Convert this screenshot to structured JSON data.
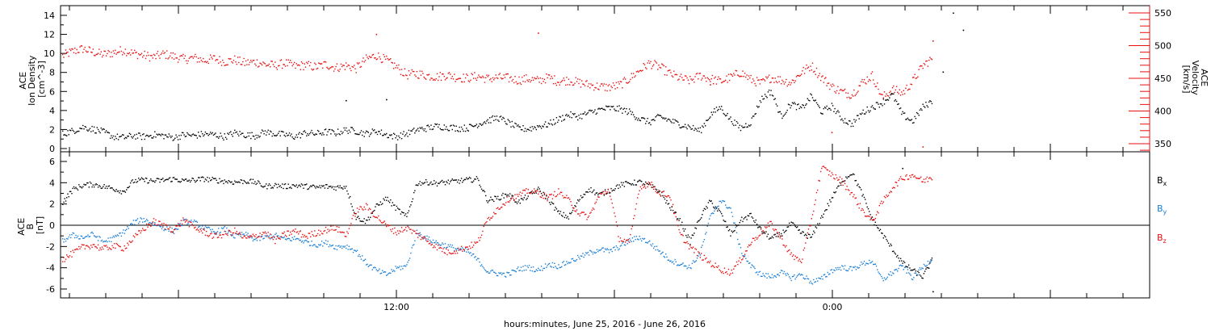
{
  "colors": {
    "black": "#000000",
    "red": "#e81010",
    "blue": "#1a7fd6"
  },
  "chart_data": [
    {
      "type": "scatter",
      "panel": "top",
      "left_axis": {
        "label_lines": [
          "ACE",
          "Ion Density",
          "[cm^-3]"
        ],
        "ylim": [
          0,
          15
        ],
        "ticks": [
          "0",
          "2",
          "4",
          "6",
          "8",
          "10",
          "12",
          "14"
        ]
      },
      "right_axis": {
        "label_lines": [
          "ACE",
          "Velocity",
          "[km/s]"
        ],
        "ylim": [
          330,
          560
        ],
        "ticks": [
          "350",
          "400",
          "450",
          "500",
          "550"
        ]
      },
      "series": [
        {
          "axis": "left",
          "color": "black",
          "x": [
            0,
            1,
            2,
            3,
            4,
            5,
            6,
            7,
            8,
            9,
            10,
            11,
            12,
            13,
            14,
            15,
            16,
            17,
            18,
            19,
            20,
            21,
            22,
            23,
            24,
            25,
            26,
            27,
            28,
            29,
            30,
            31,
            32,
            33,
            34,
            35,
            36,
            37,
            38,
            39,
            40,
            41,
            42,
            43,
            44,
            45,
            46,
            47,
            48,
            49,
            50,
            51,
            52,
            53,
            54,
            55,
            56,
            57,
            58,
            59,
            60,
            61,
            62,
            63,
            64,
            65,
            66,
            67,
            68,
            69,
            70,
            71,
            72,
            73,
            74,
            75,
            76,
            77,
            78,
            79,
            80,
            81,
            82,
            83,
            84,
            85,
            86
          ],
          "values": [
            1.6,
            1.9,
            2.3,
            2.1,
            1.8,
            1.3,
            1.2,
            1.4,
            1.3,
            1.5,
            1.4,
            1.2,
            1.5,
            1.4,
            1.6,
            1.5,
            1.3,
            1.7,
            1.5,
            1.4,
            1.8,
            1.6,
            1.5,
            1.3,
            1.7,
            1.6,
            1.8,
            1.7,
            2.0,
            1.9,
            1.6,
            1.9,
            1.5,
            1.3,
            1.6,
            2.0,
            2.2,
            2.4,
            2.3,
            2.2,
            2.2,
            2.6,
            3.0,
            3.3,
            2.8,
            2.2,
            2.1,
            2.4,
            2.6,
            3.1,
            3.6,
            3.4,
            3.8,
            4.1,
            4.3,
            4.2,
            3.9,
            3.2,
            2.8,
            3.4,
            3.0,
            2.6,
            2.3,
            1.9,
            3.6,
            4.4,
            3.1,
            2.2,
            2.8,
            5.2,
            6.1,
            3.4,
            4.8,
            4.2,
            5.6,
            3.9,
            4.5,
            3.2,
            2.6,
            3.8,
            4.4,
            4.9,
            5.7,
            3.6,
            2.9,
            4.4,
            5.1
          ],
          "outliers": [
            [
              28,
              5.1
            ],
            [
              32,
              5.2
            ],
            [
              88,
              14.3
            ],
            [
              89,
              12.5
            ],
            [
              87,
              8.1
            ]
          ]
        },
        {
          "axis": "right",
          "color": "red",
          "x": [
            0,
            1,
            2,
            3,
            4,
            5,
            6,
            7,
            8,
            9,
            10,
            11,
            12,
            13,
            14,
            15,
            16,
            17,
            18,
            19,
            20,
            21,
            22,
            23,
            24,
            25,
            26,
            27,
            28,
            29,
            30,
            31,
            32,
            33,
            34,
            35,
            36,
            37,
            38,
            39,
            40,
            41,
            42,
            43,
            44,
            45,
            46,
            47,
            48,
            49,
            50,
            51,
            52,
            53,
            54,
            55,
            56,
            57,
            58,
            59,
            60,
            61,
            62,
            63,
            64,
            65,
            66,
            67,
            68,
            69,
            70,
            71,
            72,
            73,
            74,
            75,
            76,
            77,
            78,
            79,
            80,
            81,
            82,
            83,
            84,
            85,
            86
          ],
          "values": [
            485,
            492,
            496,
            491,
            487,
            490,
            494,
            489,
            486,
            483,
            488,
            484,
            480,
            482,
            478,
            481,
            476,
            479,
            474,
            476,
            472,
            470,
            474,
            469,
            471,
            468,
            472,
            467,
            470,
            466,
            480,
            486,
            478,
            468,
            456,
            458,
            455,
            453,
            456,
            452,
            451,
            454,
            450,
            452,
            451,
            448,
            450,
            447,
            452,
            446,
            448,
            444,
            441,
            438,
            437,
            440,
            450,
            463,
            474,
            468,
            458,
            451,
            447,
            455,
            450,
            446,
            452,
            460,
            449,
            443,
            452,
            448,
            444,
            460,
            470,
            452,
            438,
            430,
            426,
            444,
            455,
            421,
            434,
            428,
            446,
            470,
            482
          ],
          "outliers": [
            [
              31,
              518
            ],
            [
              47,
              520
            ],
            [
              64,
              441
            ],
            [
              86,
              508
            ],
            [
              85,
              346
            ],
            [
              76,
              368
            ]
          ]
        }
      ]
    },
    {
      "type": "scatter",
      "panel": "bottom",
      "left_axis": {
        "label_lines": [
          "ACE",
          "B",
          "[nT]"
        ],
        "ylim": [
          -7,
          7
        ],
        "ticks": [
          "-6",
          "-4",
          "-2",
          "0",
          "2",
          "4",
          "6"
        ]
      },
      "x_axis": {
        "label": "hours:minutes, June 25, 2016 - June 26, 2016",
        "tick_labels": [
          "12:00",
          "0:00"
        ]
      },
      "legend": [
        "Bx",
        "By",
        "Bz"
      ],
      "series": [
        {
          "name": "Bx",
          "color": "black",
          "x": [
            0,
            1,
            2,
            3,
            4,
            5,
            6,
            7,
            8,
            9,
            10,
            11,
            12,
            13,
            14,
            15,
            16,
            17,
            18,
            19,
            20,
            21,
            22,
            23,
            24,
            25,
            26,
            27,
            28,
            29,
            30,
            31,
            32,
            33,
            34,
            35,
            36,
            37,
            38,
            39,
            40,
            41,
            42,
            43,
            44,
            45,
            46,
            47,
            48,
            49,
            50,
            51,
            52,
            53,
            54,
            55,
            56,
            57,
            58,
            59,
            60,
            61,
            62,
            63,
            64,
            65,
            66,
            67,
            68,
            69,
            70,
            71,
            72,
            73,
            74,
            75,
            76,
            77,
            78,
            79,
            80,
            81,
            82,
            83,
            84,
            85,
            86
          ],
          "values": [
            2.2,
            3.4,
            3.8,
            3.9,
            3.7,
            3.5,
            3.2,
            4.2,
            4.3,
            4.2,
            4.3,
            4.4,
            4.2,
            4.3,
            4.4,
            4.3,
            4.2,
            4.1,
            4.2,
            4.1,
            3.7,
            3.8,
            3.7,
            3.8,
            3.7,
            3.6,
            3.7,
            3.6,
            3.7,
            0.8,
            0.4,
            1.8,
            2.6,
            1.6,
            0.8,
            4.0,
            4.1,
            4.0,
            4.1,
            4.2,
            4.3,
            4.4,
            2.4,
            2.6,
            3.0,
            2.2,
            2.8,
            3.4,
            2.5,
            1.2,
            0.8,
            2.4,
            3.5,
            2.9,
            3.3,
            3.8,
            4.0,
            4.1,
            3.8,
            3.2,
            1.8,
            0.5,
            -1.5,
            0.8,
            2.3,
            1.2,
            -0.8,
            0.5,
            1.0,
            -0.4,
            -1.2,
            -0.8,
            0.2,
            -0.7,
            -1.1,
            0.8,
            2.6,
            4.2,
            5.0,
            3.0,
            0.6,
            -0.8,
            -2.2,
            -3.5,
            -4.2,
            -4.8,
            -3.1
          ],
          "outliers": [
            [
              83,
              5.4
            ],
            [
              86,
              -6.2
            ]
          ]
        },
        {
          "name": "By",
          "color": "blue",
          "x": [
            0,
            1,
            2,
            3,
            4,
            5,
            6,
            7,
            8,
            9,
            10,
            11,
            12,
            13,
            14,
            15,
            16,
            17,
            18,
            19,
            20,
            21,
            22,
            23,
            24,
            25,
            26,
            27,
            28,
            29,
            30,
            31,
            32,
            33,
            34,
            35,
            36,
            37,
            38,
            39,
            40,
            41,
            42,
            43,
            44,
            45,
            46,
            47,
            48,
            49,
            50,
            51,
            52,
            53,
            54,
            55,
            56,
            57,
            58,
            59,
            60,
            61,
            62,
            63,
            64,
            65,
            66,
            67,
            68,
            69,
            70,
            71,
            72,
            73,
            74,
            75,
            76,
            77,
            78,
            79,
            80,
            81,
            82,
            83,
            84,
            85,
            86
          ],
          "values": [
            -1.4,
            -0.9,
            -1.1,
            -0.8,
            -1.5,
            -1.2,
            -0.6,
            0.3,
            0.6,
            0.2,
            -0.2,
            -0.5,
            0.4,
            0.3,
            -0.2,
            -0.6,
            -0.3,
            -1.0,
            -0.8,
            -1.3,
            -1.1,
            -0.9,
            -1.3,
            -1.2,
            -1.5,
            -1.8,
            -1.6,
            -2.0,
            -1.9,
            -2.4,
            -3.5,
            -4.2,
            -4.6,
            -4.0,
            -3.8,
            -0.6,
            -1.2,
            -1.6,
            -1.9,
            -2.2,
            -2.4,
            -3.2,
            -4.3,
            -4.5,
            -4.6,
            -4.1,
            -3.9,
            -4.2,
            -3.6,
            -3.8,
            -3.4,
            -3.0,
            -2.6,
            -2.2,
            -2.4,
            -2.0,
            -1.4,
            -1.1,
            -1.6,
            -2.4,
            -3.2,
            -3.6,
            -3.9,
            -2.6,
            0.8,
            2.4,
            1.6,
            -2.3,
            -3.8,
            -4.6,
            -4.8,
            -4.4,
            -4.9,
            -4.6,
            -5.3,
            -5.0,
            -4.2,
            -3.9,
            -4.1,
            -3.6,
            -3.3,
            -5.1,
            -4.4,
            -3.8,
            -4.9,
            -3.9,
            -3.0
          ]
        },
        {
          "name": "Bz",
          "color": "red",
          "x": [
            0,
            1,
            2,
            3,
            4,
            5,
            6,
            7,
            8,
            9,
            10,
            11,
            12,
            13,
            14,
            15,
            16,
            17,
            18,
            19,
            20,
            21,
            22,
            23,
            24,
            25,
            26,
            27,
            28,
            29,
            30,
            31,
            32,
            33,
            34,
            35,
            36,
            37,
            38,
            39,
            40,
            41,
            42,
            43,
            44,
            45,
            46,
            47,
            48,
            49,
            50,
            51,
            52,
            53,
            54,
            55,
            56,
            57,
            58,
            59,
            60,
            61,
            62,
            63,
            64,
            65,
            66,
            67,
            68,
            69,
            70,
            71,
            72,
            73,
            74,
            75,
            76,
            77,
            78,
            79,
            80,
            81,
            82,
            83,
            84,
            85,
            86
          ],
          "values": [
            -3.2,
            -2.6,
            -2.0,
            -1.8,
            -2.2,
            -1.9,
            -2.1,
            -1.2,
            -0.3,
            0.4,
            0.0,
            -0.4,
            0.6,
            -0.2,
            -0.6,
            -1.0,
            -0.8,
            -0.5,
            -1.2,
            -1.0,
            -0.6,
            -1.4,
            -0.8,
            -0.5,
            -1.0,
            -0.7,
            -0.4,
            -0.2,
            -0.9,
            1.4,
            1.8,
            0.9,
            0.0,
            -0.6,
            -0.2,
            -0.8,
            -1.4,
            -2.0,
            -2.5,
            -2.3,
            -2.0,
            -1.6,
            0.6,
            1.6,
            2.5,
            2.8,
            3.3,
            3.1,
            2.6,
            3.2,
            2.4,
            1.2,
            0.8,
            2.8,
            3.4,
            -1.2,
            -1.6,
            3.6,
            4.0,
            3.1,
            2.8,
            -0.8,
            -2.0,
            -2.8,
            -3.5,
            -4.1,
            -4.4,
            -3.2,
            -1.6,
            -0.6,
            0.2,
            -1.2,
            -2.8,
            -3.3,
            0.6,
            5.5,
            4.8,
            4.2,
            3.0,
            1.5,
            0.4,
            2.2,
            3.6,
            4.5,
            4.8,
            4.2,
            4.6
          ]
        }
      ]
    }
  ]
}
